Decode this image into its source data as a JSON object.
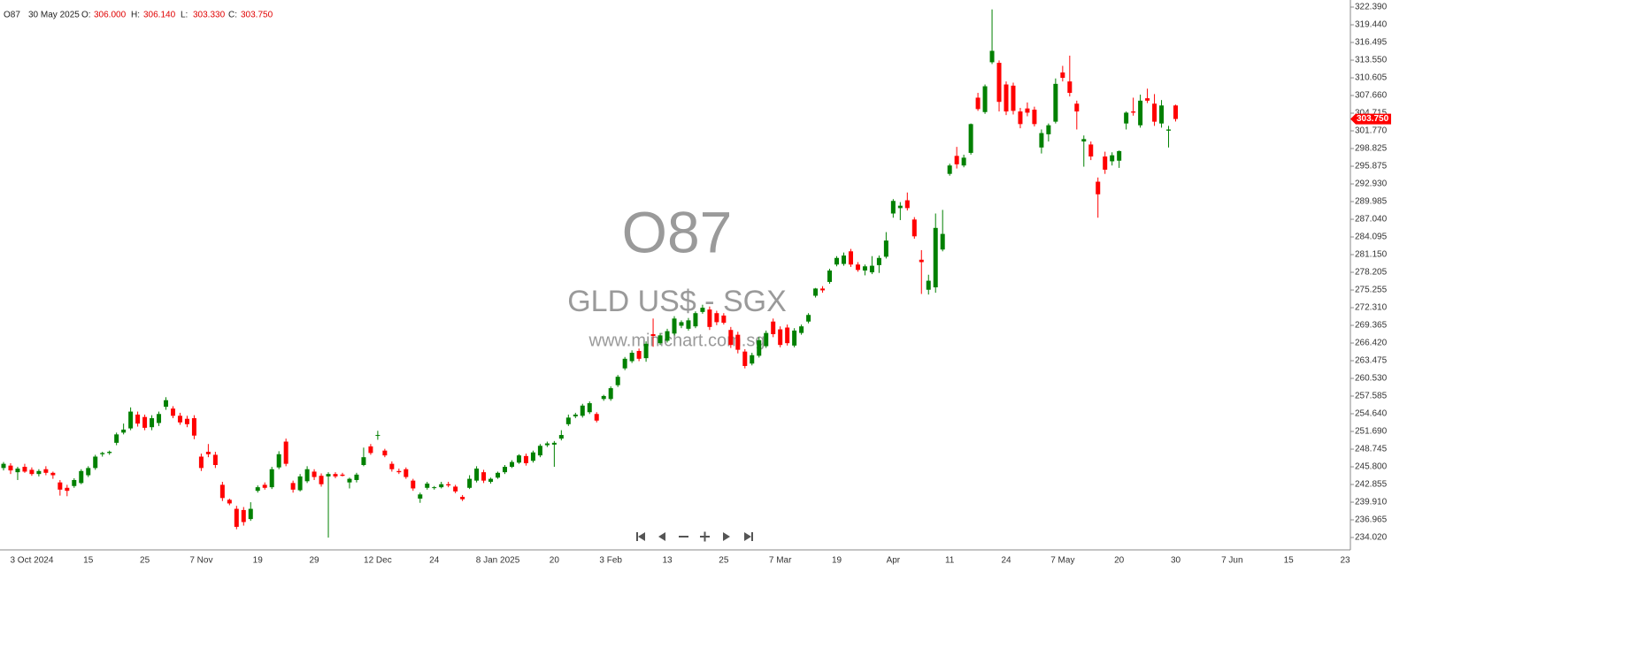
{
  "chart_data": {
    "type": "candlestick",
    "title": "O87",
    "subtitle": "GLD US$ - SGX",
    "watermark": "www.minichart.com.sg",
    "date": "30 May 2025",
    "ohlc_labels": [
      "O:",
      "H:",
      "L:",
      "C:"
    ],
    "ohlc_value_labels": [
      "306.000",
      "306.140",
      "303.330",
      "303.750"
    ],
    "last_price_label": "303.750",
    "up_color": "#008000",
    "down_color": "#ff0000",
    "ylim": [
      231.96,
      323.57
    ],
    "yticks": [
      {
        "value": 234.02,
        "label": "234.020"
      },
      {
        "value": 236.965,
        "label": "236.965"
      },
      {
        "value": 239.91,
        "label": "239.910"
      },
      {
        "value": 242.855,
        "label": "242.855"
      },
      {
        "value": 245.8,
        "label": "245.800"
      },
      {
        "value": 248.745,
        "label": "248.745"
      },
      {
        "value": 251.69,
        "label": "251.690"
      },
      {
        "value": 254.64,
        "label": "254.640"
      },
      {
        "value": 257.585,
        "label": "257.585"
      },
      {
        "value": 260.53,
        "label": "260.530"
      },
      {
        "value": 263.475,
        "label": "263.475"
      },
      {
        "value": 266.42,
        "label": "266.420"
      },
      {
        "value": 269.365,
        "label": "269.365"
      },
      {
        "value": 272.31,
        "label": "272.310"
      },
      {
        "value": 275.255,
        "label": "275.255"
      },
      {
        "value": 278.205,
        "label": "278.205"
      },
      {
        "value": 281.15,
        "label": "281.150"
      },
      {
        "value": 284.095,
        "label": "284.095"
      },
      {
        "value": 287.04,
        "label": "287.040"
      },
      {
        "value": 289.985,
        "label": "289.985"
      },
      {
        "value": 292.93,
        "label": "292.930"
      },
      {
        "value": 295.875,
        "label": "295.875"
      },
      {
        "value": 298.825,
        "label": "298.825"
      },
      {
        "value": 301.77,
        "label": "301.770"
      },
      {
        "value": 304.715,
        "label": "304.715"
      },
      {
        "value": 307.66,
        "label": "307.660"
      },
      {
        "value": 310.605,
        "label": "310.605"
      },
      {
        "value": 313.55,
        "label": "313.550"
      },
      {
        "value": 316.495,
        "label": "316.495"
      },
      {
        "value": 319.44,
        "label": "319.440"
      },
      {
        "value": 322.39,
        "label": "322.390"
      }
    ],
    "categories": [
      null,
      null,
      null,
      null,
      "3 Oct 2024",
      null,
      null,
      null,
      null,
      null,
      null,
      null,
      "15",
      null,
      null,
      null,
      null,
      null,
      null,
      null,
      "25",
      null,
      null,
      null,
      null,
      null,
      null,
      null,
      "7 Nov",
      null,
      null,
      null,
      null,
      null,
      null,
      null,
      "19",
      null,
      null,
      null,
      null,
      null,
      null,
      null,
      "29",
      null,
      null,
      null,
      null,
      null,
      null,
      null,
      null,
      "12 Dec",
      null,
      null,
      null,
      null,
      null,
      null,
      null,
      "24",
      null,
      null,
      null,
      null,
      null,
      null,
      null,
      null,
      "8 Jan 2025",
      null,
      null,
      null,
      null,
      null,
      null,
      null,
      "20",
      null,
      null,
      null,
      null,
      null,
      null,
      null,
      "3 Feb",
      null,
      null,
      null,
      null,
      null,
      null,
      null,
      "13",
      null,
      null,
      null,
      null,
      null,
      null,
      null,
      "25",
      null,
      null,
      null,
      null,
      null,
      null,
      null,
      "7 Mar",
      null,
      null,
      null,
      null,
      null,
      null,
      null,
      "19",
      null,
      null,
      null,
      null,
      null,
      null,
      null,
      "Apr",
      null,
      null,
      null,
      null,
      null,
      null,
      null,
      "11",
      null,
      null,
      null,
      null,
      null,
      null,
      null,
      "24",
      null,
      null,
      null,
      null,
      null,
      null,
      null,
      "7 May",
      null,
      null,
      null,
      null,
      null,
      null,
      null,
      "20",
      null,
      null,
      null,
      null,
      null,
      null,
      null,
      "30",
      null,
      null,
      null,
      null,
      null,
      null,
      null,
      "7 Jun",
      null,
      null,
      null,
      null,
      null,
      null,
      null,
      "15",
      null,
      null,
      null,
      null,
      null,
      null,
      null,
      "23"
    ],
    "open": [
      245.6,
      246.0,
      244.9,
      245.8,
      245.3,
      244.6,
      245.4,
      244.8,
      243.2,
      242.3,
      242.6,
      243.1,
      244.4,
      245.6,
      247.9,
      248.1,
      249.8,
      251.5,
      252.2,
      254.5,
      254.1,
      252.4,
      253.1,
      255.8,
      255.5,
      254.3,
      253.8,
      253.9,
      247.5,
      248.3,
      247.8,
      242.8,
      240.3,
      238.8,
      238.6,
      237.1,
      241.8,
      242.8,
      242.4,
      245.7,
      250.0,
      243.1,
      241.9,
      243.4,
      245.0,
      244.3,
      244.2,
      244.6,
      244.5,
      243.2,
      243.6,
      246.1,
      249.2,
      251.0,
      248.5,
      246.3,
      245.1,
      245.4,
      243.5,
      240.5,
      242.3,
      242.3,
      242.4,
      242.9,
      242.5,
      240.8,
      242.3,
      243.5,
      244.9,
      243.3,
      244.0,
      244.9,
      245.8,
      246.5,
      247.6,
      246.8,
      247.7,
      249.4,
      249.5,
      250.5,
      252.9,
      254.2,
      254.3,
      254.9,
      254.6,
      257.1,
      257.1,
      259.4,
      262.2,
      263.4,
      265.1,
      263.9,
      267.9,
      266.4,
      266.8,
      268.0,
      269.3,
      268.8,
      269.2,
      271.6,
      272.0,
      271.4,
      271.0,
      268.6,
      267.8,
      265.0,
      263.0,
      264.3,
      265.9,
      270.0,
      268.7,
      269.0,
      266.0,
      268.1,
      270.0,
      274.3,
      275.5,
      276.6,
      279.5,
      279.6,
      281.7,
      279.5,
      278.5,
      278.2,
      279.4,
      280.8,
      288.0,
      288.9,
      290.2,
      287.0,
      280.3,
      275.3,
      275.7,
      282.0,
      294.6,
      297.6,
      296.0,
      298.1,
      307.3,
      304.9,
      313.2,
      313.1,
      309.5,
      309.3,
      305.0,
      305.5,
      305.3,
      299.0,
      301.2,
      303.3,
      311.5,
      310.0,
      306.3,
      300.0,
      299.5,
      293.3,
      297.5,
      296.7,
      296.8,
      303.0,
      305.0,
      302.7,
      307.2,
      306.3,
      303.0,
      301.8,
      306.0,
      null,
      null,
      null,
      null,
      null,
      null,
      null,
      null,
      null,
      null,
      null,
      null,
      null,
      null,
      null,
      null,
      null,
      null,
      null,
      null,
      null,
      null,
      null,
      null
    ],
    "high": [
      246.6,
      246.4,
      245.8,
      246.3,
      245.7,
      245.4,
      245.9,
      245.0,
      243.6,
      242.8,
      243.9,
      245.4,
      245.9,
      247.8,
      248.3,
      248.5,
      251.5,
      253.0,
      255.7,
      255.0,
      254.5,
      254.4,
      255.0,
      257.4,
      255.9,
      254.8,
      254.3,
      254.4,
      248.0,
      249.6,
      248.3,
      243.3,
      240.5,
      239.3,
      239.1,
      239.9,
      242.7,
      243.2,
      245.8,
      248.4,
      250.5,
      243.5,
      244.6,
      245.9,
      245.4,
      244.7,
      244.9,
      244.9,
      244.8,
      244.0,
      244.8,
      249.0,
      249.6,
      251.8,
      248.8,
      246.7,
      245.5,
      245.7,
      243.8,
      241.5,
      243.3,
      242.6,
      243.3,
      243.3,
      242.8,
      241.1,
      244.4,
      245.9,
      245.3,
      244.0,
      245.0,
      246.1,
      246.9,
      247.9,
      248.0,
      248.5,
      249.6,
      250.0,
      250.1,
      251.9,
      254.5,
      254.8,
      256.3,
      256.7,
      254.9,
      257.8,
      259.2,
      261.1,
      264.1,
      265.2,
      265.5,
      266.7,
      270.5,
      268.1,
      268.8,
      270.9,
      270.2,
      270.6,
      271.7,
      272.8,
      272.5,
      271.8,
      271.4,
      269.1,
      268.3,
      265.4,
      264.8,
      267.4,
      268.5,
      270.5,
      269.2,
      269.5,
      268.9,
      269.5,
      271.4,
      275.6,
      275.9,
      278.8,
      280.9,
      281.5,
      282.1,
      279.9,
      279.5,
      280.9,
      281.0,
      284.9,
      290.4,
      289.9,
      291.5,
      287.4,
      281.9,
      277.8,
      288.0,
      288.6,
      296.3,
      299.1,
      297.8,
      303.0,
      308.1,
      309.5,
      322.0,
      313.5,
      310.0,
      309.8,
      305.6,
      306.5,
      305.8,
      302.0,
      303.0,
      310.5,
      312.6,
      314.3,
      306.8,
      301.0,
      300.0,
      294.0,
      298.3,
      298.2,
      298.5,
      305.0,
      307.3,
      307.8,
      308.8,
      307.9,
      306.9,
      302.6,
      306.14,
      null,
      null,
      null,
      null,
      null,
      null,
      null,
      null,
      null,
      null,
      null,
      null,
      null,
      null,
      null,
      null,
      null,
      null,
      null,
      null,
      null,
      null,
      null,
      null
    ],
    "low": [
      245.2,
      244.6,
      243.6,
      244.8,
      244.3,
      244.2,
      244.4,
      243.8,
      241.0,
      240.9,
      242.3,
      242.9,
      244.1,
      245.3,
      247.5,
      247.8,
      249.4,
      251.2,
      251.9,
      252.5,
      251.9,
      251.9,
      252.6,
      255.3,
      253.9,
      252.8,
      252.4,
      250.4,
      245.1,
      247.4,
      245.6,
      240.1,
      239.4,
      235.4,
      236.0,
      236.8,
      241.5,
      242.0,
      242.1,
      245.4,
      245.9,
      241.5,
      241.7,
      243.1,
      243.6,
      242.5,
      234.0,
      243.9,
      244.2,
      242.2,
      243.2,
      245.9,
      247.8,
      250.3,
      247.4,
      245.0,
      244.6,
      243.8,
      241.8,
      239.8,
      242.0,
      242.0,
      242.2,
      242.4,
      241.4,
      240.1,
      242.1,
      243.2,
      243.1,
      243.0,
      243.8,
      244.6,
      245.6,
      246.3,
      246.0,
      246.5,
      247.4,
      249.1,
      245.8,
      250.2,
      252.6,
      253.9,
      254.0,
      254.6,
      253.2,
      256.8,
      256.8,
      259.1,
      261.9,
      263.1,
      263.4,
      263.3,
      265.8,
      266.1,
      266.5,
      267.7,
      268.9,
      268.5,
      268.9,
      271.3,
      268.6,
      269.4,
      269.5,
      265.6,
      264.7,
      262.2,
      262.7,
      264.0,
      265.6,
      267.4,
      265.7,
      266.0,
      265.7,
      267.8,
      269.7,
      274.0,
      274.8,
      276.3,
      279.2,
      279.3,
      279.1,
      278.3,
      277.7,
      277.9,
      278.1,
      280.5,
      287.3,
      286.9,
      288.5,
      283.8,
      274.6,
      274.5,
      274.8,
      281.7,
      294.3,
      295.5,
      295.7,
      297.8,
      305.1,
      304.6,
      312.9,
      305.0,
      304.4,
      304.5,
      302.2,
      304.2,
      302.5,
      298.0,
      300.0,
      303.0,
      310.0,
      307.5,
      302.0,
      295.8,
      296.9,
      287.3,
      294.6,
      296.0,
      295.6,
      302.0,
      304.3,
      302.3,
      306.4,
      302.6,
      302.3,
      299.0,
      303.33,
      null,
      null,
      null,
      null,
      null,
      null,
      null,
      null,
      null,
      null,
      null,
      null,
      null,
      null,
      null,
      null,
      null,
      null,
      null,
      null,
      null,
      null,
      null,
      null
    ],
    "close": [
      246.3,
      245.2,
      245.5,
      245.0,
      244.6,
      245.1,
      244.8,
      244.4,
      242.0,
      241.8,
      243.6,
      245.1,
      245.6,
      247.5,
      248.1,
      248.3,
      251.2,
      252.0,
      255.0,
      253.0,
      252.3,
      253.9,
      254.6,
      256.9,
      254.3,
      253.2,
      252.9,
      251.0,
      245.6,
      247.9,
      246.1,
      240.6,
      239.7,
      235.8,
      236.6,
      238.8,
      242.4,
      242.3,
      245.4,
      247.9,
      246.3,
      242.0,
      244.2,
      245.4,
      244.1,
      242.9,
      244.6,
      244.2,
      244.3,
      243.8,
      244.5,
      247.4,
      248.1,
      251.1,
      247.7,
      245.4,
      244.9,
      244.1,
      242.2,
      241.2,
      243.0,
      242.4,
      242.9,
      242.7,
      241.7,
      240.4,
      243.8,
      245.5,
      243.5,
      243.8,
      244.8,
      245.8,
      246.6,
      247.7,
      246.4,
      248.2,
      249.3,
      249.7,
      249.8,
      251.1,
      254.0,
      254.5,
      256.0,
      256.4,
      253.5,
      257.6,
      258.9,
      260.8,
      263.8,
      264.8,
      263.8,
      266.3,
      267.6,
      267.7,
      268.4,
      270.5,
      269.9,
      270.2,
      271.4,
      272.3,
      269.1,
      269.9,
      269.8,
      266.1,
      265.3,
      262.6,
      264.4,
      266.9,
      268.1,
      267.9,
      266.1,
      266.4,
      268.5,
      269.2,
      271.1,
      275.5,
      275.2,
      278.5,
      280.6,
      281.0,
      279.5,
      278.6,
      279.2,
      279.3,
      280.6,
      283.5,
      290.1,
      289.3,
      288.9,
      284.2,
      279.9,
      276.8,
      285.6,
      284.6,
      296.0,
      296.2,
      297.3,
      302.9,
      305.4,
      309.2,
      315.1,
      306.6,
      305.0,
      305.1,
      302.9,
      304.8,
      302.9,
      301.4,
      302.7,
      309.6,
      310.6,
      308.1,
      305.0,
      300.4,
      297.5,
      291.2,
      295.3,
      297.7,
      298.4,
      304.8,
      304.8,
      306.8,
      306.8,
      303.3,
      306.0,
      302.0,
      303.75,
      null,
      null,
      null,
      null,
      null,
      null,
      null,
      null,
      null,
      null,
      null,
      null,
      null,
      null,
      null,
      null,
      null,
      null,
      null,
      null,
      null,
      null,
      null,
      null
    ]
  }
}
